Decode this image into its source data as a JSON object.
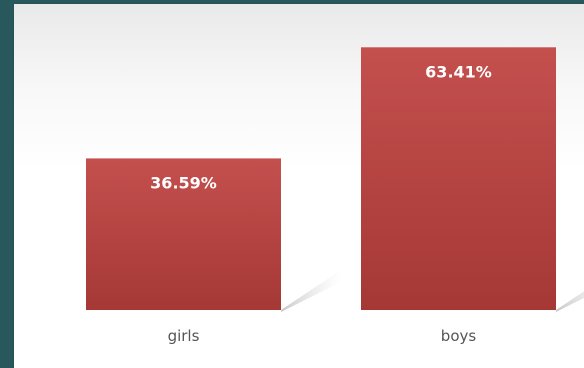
{
  "chart_data": {
    "type": "bar",
    "categories": [
      "girls",
      "boys"
    ],
    "values": [
      36.59,
      63.41
    ],
    "data_labels": [
      "36.59%",
      "63.41%"
    ],
    "title": "",
    "xlabel": "",
    "ylabel": "",
    "ylim": [
      0,
      70
    ],
    "grid": false,
    "legend": "none",
    "colors": {
      "bar": "#bf4b49",
      "bar_dark": "#a83936",
      "label": "#ffffff",
      "category": "#555555",
      "frame": "#28585c"
    }
  }
}
